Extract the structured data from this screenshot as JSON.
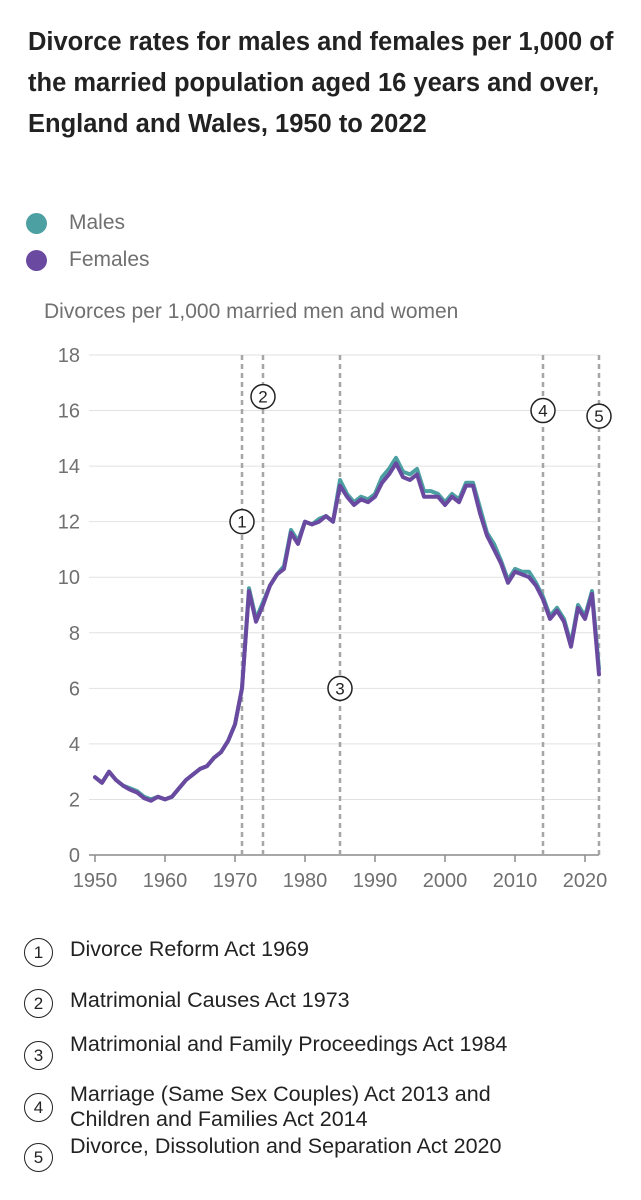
{
  "title": "Divorce rates for males and females per 1,000 of the married population aged 16 years and over, England and Wales, 1950 to 2022",
  "legend": [
    {
      "label": "Males",
      "color": "#4da0a2"
    },
    {
      "label": "Females",
      "color": "#6a4aa0"
    }
  ],
  "footnotes": [
    {
      "marker": "1",
      "text": "Divorce Reform Act 1969"
    },
    {
      "marker": "2",
      "text": "Matrimonial Causes Act 1973"
    },
    {
      "marker": "3",
      "text": "Matrimonial and Family Proceedings Act 1984"
    },
    {
      "marker": "4",
      "text": "Marriage (Same Sex Couples) Act 2013 and Children and Families Act 2014"
    },
    {
      "marker": "5",
      "text": "Divorce, Dissolution and Separation Act 2020"
    }
  ],
  "chart_data": {
    "type": "line",
    "title": "Divorce rates for males and females per 1,000 of the married population aged 16 years and over, England and Wales, 1950 to 2022",
    "ylabel": "Divorces per 1,000 married men and women",
    "xlabel": "",
    "xlim": [
      1950,
      2022
    ],
    "ylim": [
      0,
      18
    ],
    "grid": true,
    "legend_position": "top-left",
    "x_ticks": [
      1950,
      1960,
      1970,
      1980,
      1990,
      2000,
      2010,
      2020
    ],
    "y_ticks": [
      0,
      2,
      4,
      6,
      8,
      10,
      12,
      14,
      16,
      18
    ],
    "x": [
      1950,
      1951,
      1952,
      1953,
      1954,
      1955,
      1956,
      1957,
      1958,
      1959,
      1960,
      1961,
      1962,
      1963,
      1964,
      1965,
      1966,
      1967,
      1968,
      1969,
      1970,
      1971,
      1972,
      1973,
      1974,
      1975,
      1976,
      1977,
      1978,
      1979,
      1980,
      1981,
      1982,
      1983,
      1984,
      1985,
      1986,
      1987,
      1988,
      1989,
      1990,
      1991,
      1992,
      1993,
      1994,
      1995,
      1996,
      1997,
      1998,
      1999,
      2000,
      2001,
      2002,
      2003,
      2004,
      2005,
      2006,
      2007,
      2008,
      2009,
      2010,
      2011,
      2012,
      2013,
      2014,
      2015,
      2016,
      2017,
      2018,
      2019,
      2020,
      2021,
      2022
    ],
    "series": [
      {
        "name": "Males",
        "color": "#4da0a2",
        "values": [
          2.8,
          2.6,
          3.0,
          2.7,
          2.5,
          2.4,
          2.3,
          2.1,
          2.0,
          2.1,
          2.0,
          2.1,
          2.4,
          2.7,
          2.9,
          3.1,
          3.2,
          3.5,
          3.7,
          4.1,
          4.7,
          6.0,
          9.6,
          8.5,
          9.1,
          9.7,
          10.1,
          10.4,
          11.7,
          11.3,
          12.0,
          11.9,
          12.1,
          12.2,
          12.0,
          13.5,
          13.0,
          12.7,
          12.9,
          12.8,
          13.0,
          13.6,
          13.9,
          14.3,
          13.8,
          13.7,
          13.9,
          13.1,
          13.1,
          13.0,
          12.7,
          13.0,
          12.8,
          13.4,
          13.4,
          12.5,
          11.6,
          11.2,
          10.6,
          9.9,
          10.3,
          10.2,
          10.2,
          9.8,
          9.3,
          8.6,
          8.9,
          8.5,
          7.6,
          9.0,
          8.6,
          9.5,
          6.7
        ]
      },
      {
        "name": "Females",
        "color": "#6a4aa0",
        "values": [
          2.8,
          2.6,
          3.0,
          2.7,
          2.5,
          2.35,
          2.25,
          2.05,
          1.95,
          2.1,
          2.0,
          2.1,
          2.4,
          2.7,
          2.9,
          3.1,
          3.2,
          3.5,
          3.7,
          4.1,
          4.7,
          6.0,
          9.5,
          8.4,
          9.0,
          9.7,
          10.1,
          10.3,
          11.6,
          11.2,
          12.0,
          11.9,
          12.0,
          12.2,
          12.0,
          13.3,
          12.9,
          12.6,
          12.8,
          12.7,
          12.9,
          13.4,
          13.7,
          14.1,
          13.6,
          13.5,
          13.7,
          12.9,
          12.9,
          12.9,
          12.6,
          12.9,
          12.7,
          13.3,
          13.3,
          12.3,
          11.5,
          11.0,
          10.5,
          9.8,
          10.2,
          10.1,
          10.0,
          9.7,
          9.2,
          8.5,
          8.8,
          8.4,
          7.5,
          8.9,
          8.5,
          9.4,
          6.5
        ]
      }
    ],
    "annotations": [
      {
        "label": "1",
        "x": 1971,
        "y": 12.0
      },
      {
        "label": "2",
        "x": 1974,
        "y": 16.5
      },
      {
        "label": "3",
        "x": 1985,
        "y": 6.0
      },
      {
        "label": "4",
        "x": 2014,
        "y": 16.0
      },
      {
        "label": "5",
        "x": 2022,
        "y": 15.8
      }
    ]
  }
}
